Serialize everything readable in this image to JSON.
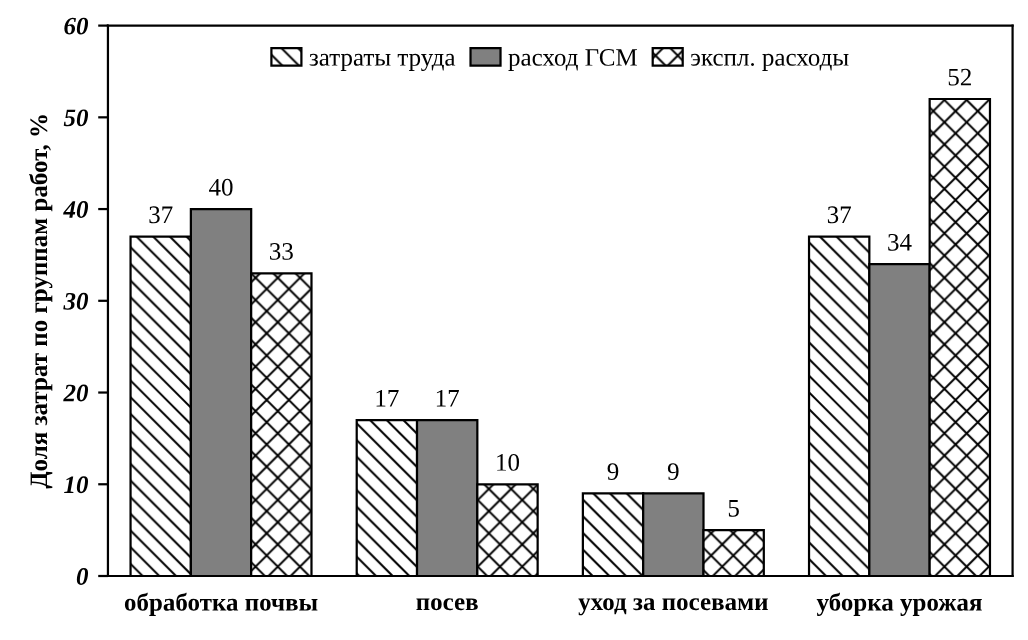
{
  "chart_data": {
    "type": "bar",
    "ylabel": "Доля затрат по группам работ, %",
    "categories": [
      "обработка почвы",
      "посев",
      "уход за посевами",
      "уборка урожая"
    ],
    "series": [
      {
        "name": "затраты труда",
        "color": "#000000",
        "values": [
          37,
          17,
          9,
          37
        ]
      },
      {
        "name": "расход ГСМ",
        "color": "#808080",
        "values": [
          40,
          17,
          9,
          34
        ]
      },
      {
        "name": "экспл. расходы",
        "color": "#000000",
        "values": [
          33,
          10,
          5,
          52
        ]
      }
    ],
    "ylim": [
      0,
      60
    ],
    "yticks": [
      0,
      10,
      20,
      30,
      40,
      50,
      60
    ],
    "data_labels": true,
    "legend": "top",
    "grid": false
  }
}
